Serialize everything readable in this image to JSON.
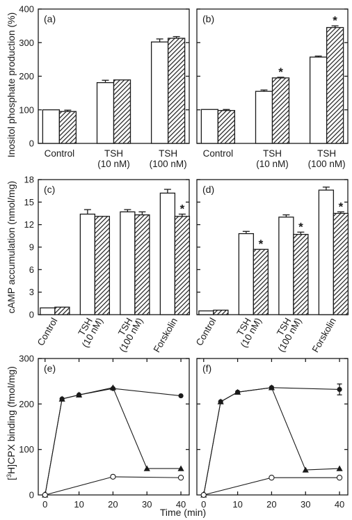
{
  "figure": {
    "y_labels": {
      "inositol": "Inositol phosphate production (%)",
      "camp": "cAMP accumulation (nmol/mg)",
      "binding_sup": "3",
      "binding_pre": "[",
      "binding_post": "H]CPX binding (fmol/mg)"
    },
    "x_label_time": "Time (min)",
    "significance_marker": "*"
  },
  "chart_data": [
    {
      "panel": "(a)",
      "type": "bar",
      "ylim": [
        0,
        400
      ],
      "yticks": [
        0,
        100,
        200,
        300,
        400
      ],
      "categories": [
        [
          "Control"
        ],
        [
          "TSH",
          "(10 nM)"
        ],
        [
          "TSH",
          "(100 nM)"
        ]
      ],
      "series": [
        {
          "style": "open",
          "values": [
            100,
            181,
            302
          ],
          "errors": [
            0,
            7,
            9
          ]
        },
        {
          "style": "hatched",
          "values": [
            95,
            189,
            313
          ],
          "errors": [
            4,
            0,
            5
          ]
        }
      ],
      "significant": []
    },
    {
      "panel": "(b)",
      "type": "bar",
      "ylim": [
        0,
        400
      ],
      "yticks": [
        0,
        100,
        200,
        300,
        400
      ],
      "categories": [
        [
          "Control"
        ],
        [
          "TSH",
          "(10 nM)"
        ],
        [
          "TSH",
          "(100 nM)"
        ]
      ],
      "series": [
        {
          "style": "open",
          "values": [
            101,
            155,
            257
          ],
          "errors": [
            0,
            4,
            3
          ]
        },
        {
          "style": "hatched",
          "values": [
            98,
            195,
            345
          ],
          "errors": [
            3,
            2,
            5
          ]
        }
      ],
      "significant": [
        [
          1,
          1
        ],
        [
          1,
          2
        ]
      ]
    },
    {
      "panel": "(c)",
      "type": "bar",
      "ylim": [
        0,
        18
      ],
      "yticks": [
        0,
        3,
        6,
        9,
        12,
        15,
        18
      ],
      "categories": [
        [
          "Control"
        ],
        [
          "TSH",
          "(10 nM)"
        ],
        [
          "TSH",
          "(100 nM)"
        ],
        [
          "Forskolin"
        ]
      ],
      "series": [
        {
          "style": "open",
          "values": [
            0.9,
            13.4,
            13.7,
            16.2
          ],
          "errors": [
            0,
            0.6,
            0.3,
            0.5
          ]
        },
        {
          "style": "hatched",
          "values": [
            1.0,
            13.1,
            13.3,
            13.1
          ],
          "errors": [
            0,
            0,
            0.4,
            0.3
          ]
        }
      ],
      "significant": [
        [
          1,
          3
        ]
      ]
    },
    {
      "panel": "(d)",
      "type": "bar",
      "ylim": [
        0,
        18
      ],
      "yticks": [
        0,
        3,
        6,
        9,
        12,
        15,
        18
      ],
      "categories": [
        [
          "Control"
        ],
        [
          "TSH",
          "(10 nM)"
        ],
        [
          "TSH",
          "(100 nM)"
        ],
        [
          "Forskolin"
        ]
      ],
      "series": [
        {
          "style": "open",
          "values": [
            0.5,
            10.8,
            13.0,
            16.6
          ],
          "errors": [
            0,
            0.3,
            0.3,
            0.4
          ]
        },
        {
          "style": "hatched",
          "values": [
            0.6,
            8.7,
            10.7,
            13.5
          ],
          "errors": [
            0,
            0,
            0.3,
            0.2
          ]
        }
      ],
      "significant": [
        [
          1,
          1
        ],
        [
          1,
          2
        ],
        [
          1,
          3
        ]
      ]
    },
    {
      "panel": "(e)",
      "type": "line",
      "xlim": [
        0,
        40
      ],
      "xticks": [
        0,
        10,
        20,
        30,
        40
      ],
      "ylim": [
        0,
        300
      ],
      "yticks": [
        100,
        200,
        300
      ],
      "ytick_labels_shown": [
        100,
        200,
        300
      ],
      "series": [
        {
          "marker": "filled-circle",
          "x": [
            0,
            5,
            10,
            20,
            40
          ],
          "y": [
            0,
            211,
            220,
            234,
            218
          ]
        },
        {
          "marker": "filled-triangle",
          "x": [
            0,
            5,
            10,
            20,
            30,
            40
          ],
          "y": [
            0,
            211,
            220,
            236,
            58,
            58
          ]
        },
        {
          "marker": "open-circle",
          "x": [
            0,
            20,
            40
          ],
          "y": [
            0,
            40,
            38
          ]
        }
      ]
    },
    {
      "panel": "(f)",
      "type": "line",
      "xlim": [
        0,
        40
      ],
      "xticks": [
        0,
        10,
        20,
        30,
        40
      ],
      "ylim": [
        0,
        300
      ],
      "yticks": [
        100,
        200,
        300
      ],
      "series": [
        {
          "marker": "filled-circle",
          "x": [
            0,
            5,
            10,
            20,
            40
          ],
          "y": [
            0,
            205,
            226,
            236,
            232
          ],
          "errors": [
            0,
            0,
            0,
            0,
            12
          ]
        },
        {
          "marker": "filled-triangle",
          "x": [
            0,
            5,
            10,
            20,
            30,
            40
          ],
          "y": [
            0,
            205,
            226,
            236,
            55,
            58
          ]
        },
        {
          "marker": "open-circle",
          "x": [
            0,
            20,
            40
          ],
          "y": [
            0,
            38,
            38
          ]
        }
      ]
    }
  ]
}
